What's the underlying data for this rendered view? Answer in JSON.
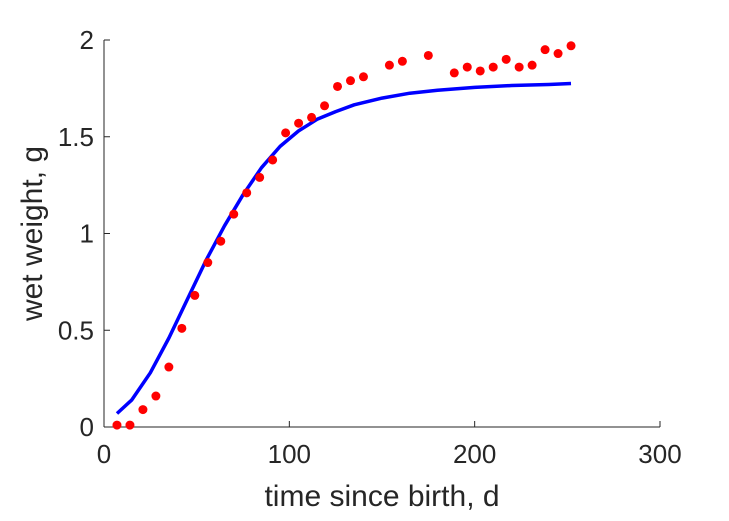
{
  "chart_data": {
    "type": "scatter",
    "title": "",
    "xlabel": "time since birth, d",
    "ylabel": "wet weight, g",
    "xlim": [
      0,
      300
    ],
    "ylim": [
      0,
      2
    ],
    "xticks": [
      0,
      100,
      200,
      300
    ],
    "xtick_labels": [
      "0",
      "100",
      "200",
      "300"
    ],
    "yticks": [
      0,
      0.5,
      1,
      1.5,
      2
    ],
    "ytick_labels": [
      "0",
      "0.5",
      "1",
      "1.5",
      "2"
    ],
    "grid": false,
    "legend": "none",
    "series": [
      {
        "kind": "points",
        "color": "#ff0000",
        "x": [
          7,
          14,
          21,
          28,
          35,
          42,
          49,
          56,
          63,
          70,
          77,
          84,
          91,
          98,
          105,
          112,
          119,
          126,
          133,
          140,
          154,
          161,
          175,
          189,
          196,
          203,
          210,
          217,
          224,
          231,
          238,
          245,
          252
        ],
        "y": [
          0.01,
          0.01,
          0.09,
          0.16,
          0.31,
          0.51,
          0.68,
          0.85,
          0.96,
          1.1,
          1.21,
          1.29,
          1.38,
          1.52,
          1.57,
          1.6,
          1.66,
          1.76,
          1.79,
          1.81,
          1.87,
          1.89,
          1.92,
          1.83,
          1.86,
          1.84,
          1.86,
          1.9,
          1.86,
          1.87,
          1.95,
          1.93,
          1.97
        ]
      },
      {
        "kind": "line",
        "color": "#0000ff",
        "x": [
          7,
          15,
          25,
          35,
          45,
          55,
          65,
          75,
          85,
          95,
          105,
          115,
          125,
          135,
          150,
          165,
          180,
          200,
          220,
          240,
          252
        ],
        "y": [
          0.07,
          0.14,
          0.28,
          0.46,
          0.66,
          0.86,
          1.04,
          1.2,
          1.34,
          1.45,
          1.53,
          1.59,
          1.63,
          1.665,
          1.7,
          1.725,
          1.74,
          1.755,
          1.765,
          1.77,
          1.775
        ]
      }
    ]
  }
}
